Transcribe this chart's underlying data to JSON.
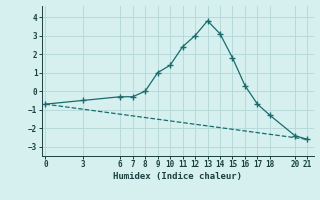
{
  "line1_x": [
    0,
    3,
    6,
    7,
    8,
    9,
    10,
    11,
    12,
    13,
    14,
    15,
    16,
    17,
    18,
    20,
    21
  ],
  "line1_y": [
    -0.7,
    -0.5,
    -0.3,
    -0.3,
    0.0,
    1.0,
    1.4,
    2.4,
    3.0,
    3.8,
    3.1,
    1.8,
    0.3,
    -0.7,
    -1.3,
    -2.4,
    -2.6
  ],
  "line2_x": [
    0,
    21
  ],
  "line2_y": [
    -0.7,
    -2.6
  ],
  "xticks": [
    0,
    3,
    6,
    7,
    8,
    9,
    10,
    11,
    12,
    13,
    14,
    15,
    16,
    17,
    18,
    20,
    21
  ],
  "yticks": [
    -3,
    -2,
    -1,
    0,
    1,
    2,
    3,
    4
  ],
  "ylim": [
    -3.5,
    4.6
  ],
  "xlim": [
    -0.3,
    21.5
  ],
  "xlabel": "Humidex (Indice chaleur)",
  "line_color": "#1a6b6b",
  "bg_color": "#d6f0f0",
  "grid_color": "#b8dada",
  "marker": "+"
}
